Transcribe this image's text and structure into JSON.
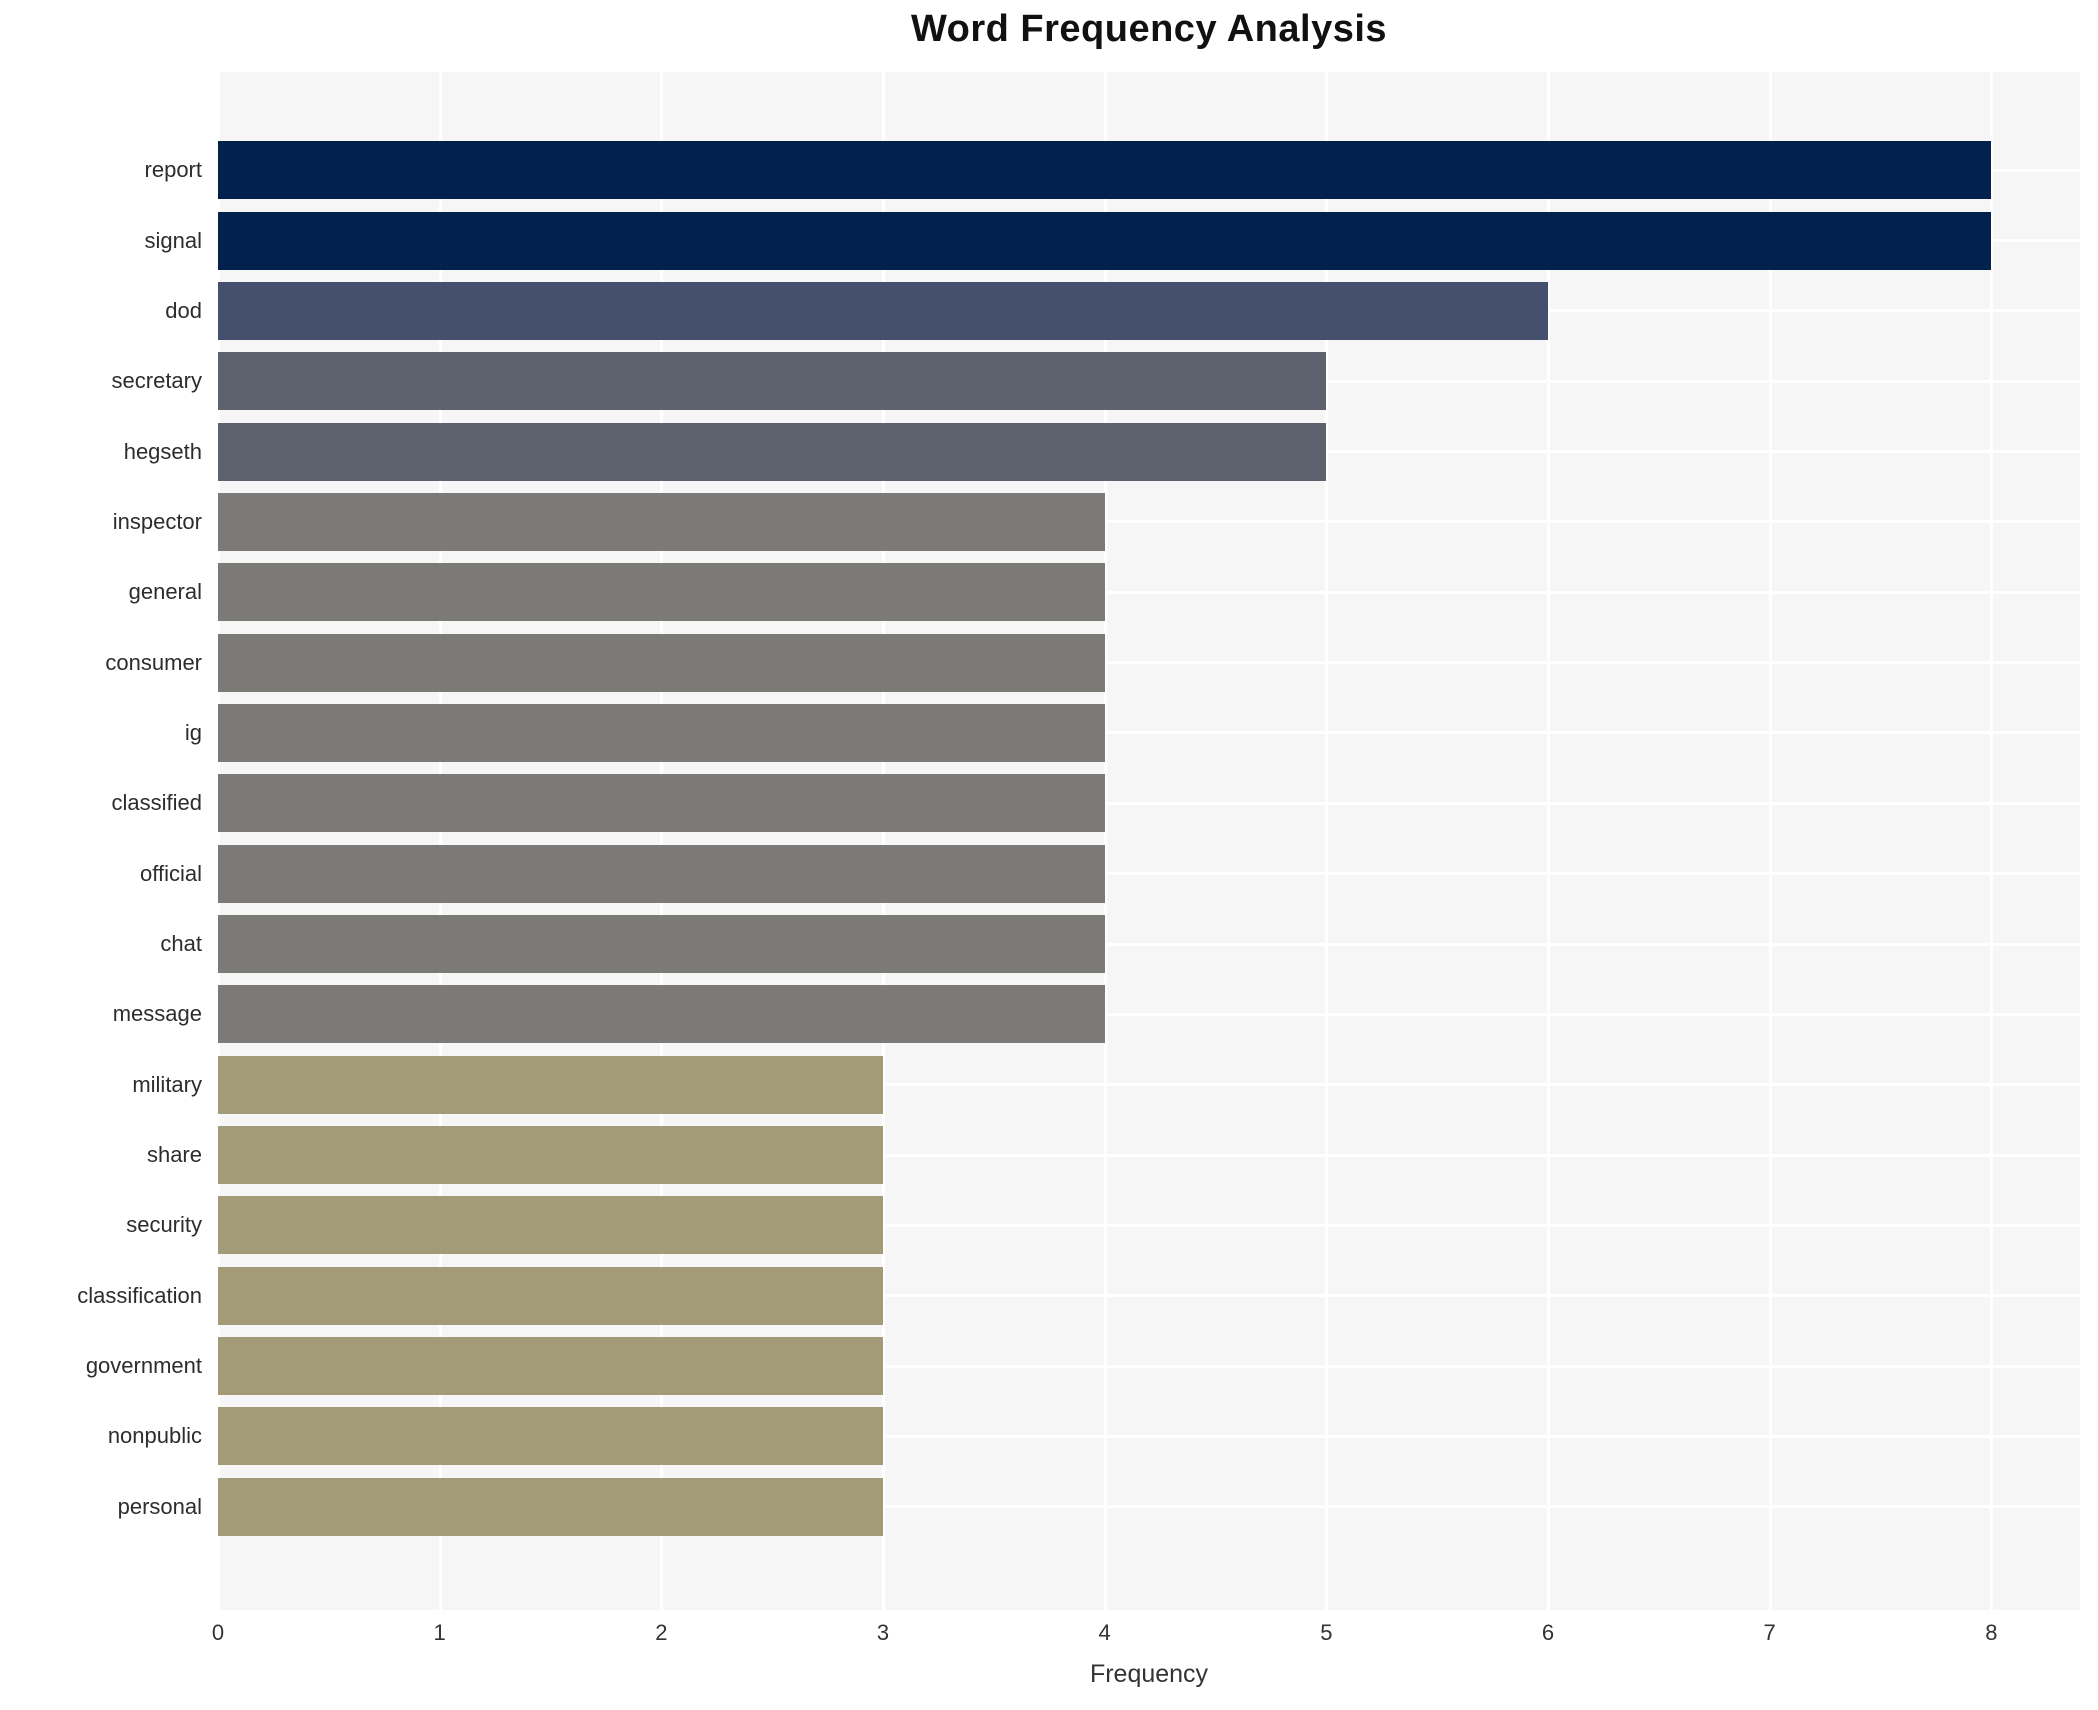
{
  "chart_data": {
    "type": "bar",
    "orientation": "horizontal",
    "title": "Word Frequency Analysis",
    "xlabel": "Frequency",
    "ylabel": "",
    "categories": [
      "report",
      "signal",
      "dod",
      "secretary",
      "hegseth",
      "inspector",
      "general",
      "consumer",
      "ig",
      "classified",
      "official",
      "chat",
      "message",
      "military",
      "share",
      "security",
      "classification",
      "government",
      "nonpublic",
      "personal"
    ],
    "values": [
      8,
      8,
      6,
      5,
      5,
      4,
      4,
      4,
      4,
      4,
      4,
      4,
      4,
      3,
      3,
      3,
      3,
      3,
      3,
      3
    ],
    "xticks": [
      0,
      1,
      2,
      3,
      4,
      5,
      6,
      7,
      8
    ],
    "xlim": [
      0,
      8.4
    ],
    "grid": true,
    "legend": false,
    "colors_by_value": {
      "8": "#02214d",
      "6": "#454f6e",
      "5": "#5e616e",
      "4": "#7b7a76",
      "3": "#a39b78"
    },
    "plot_background": "#f6f6f6",
    "gridline_color": "#ffffff",
    "text_color": "#2d2d2d"
  }
}
